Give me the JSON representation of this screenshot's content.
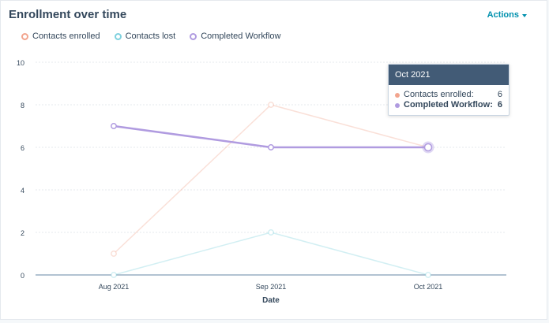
{
  "header": {
    "title": "Enrollment over time",
    "actions_label": "Actions"
  },
  "colors": {
    "enrolled": "#f2a58e",
    "lost": "#7fd1de",
    "workflow": "#b09be0",
    "tooltip_header": "#425b76",
    "accent": "#0091ae"
  },
  "legend": [
    {
      "label": "Contacts enrolled",
      "color": "#f2a58e"
    },
    {
      "label": "Contacts lost",
      "color": "#7fd1de"
    },
    {
      "label": "Completed Workflow",
      "color": "#b09be0"
    }
  ],
  "tooltip": {
    "title": "Oct 2021",
    "rows": [
      {
        "label": "Contacts enrolled:",
        "value": "6",
        "color": "#f2a58e",
        "bold": false
      },
      {
        "label": "Completed Workflow:",
        "value": "6",
        "color": "#b09be0",
        "bold": true
      }
    ]
  },
  "chart_data": {
    "type": "line",
    "categories": [
      "Aug 2021",
      "Sep 2021",
      "Oct 2021"
    ],
    "series": [
      {
        "name": "Contacts enrolled",
        "values": [
          1,
          8,
          6
        ],
        "color": "#f2a58e"
      },
      {
        "name": "Contacts lost",
        "values": [
          0,
          2,
          0
        ],
        "color": "#7fd1de"
      },
      {
        "name": "Completed Workflow",
        "values": [
          7,
          6,
          6
        ],
        "color": "#b09be0"
      }
    ],
    "title": "Enrollment over time",
    "xlabel": "Date",
    "ylabel": "",
    "ylim": [
      0,
      10
    ],
    "yticks": [
      0,
      2,
      4,
      6,
      8,
      10
    ],
    "grid": true,
    "legend_position": "top-left",
    "highlighted_category": "Oct 2021",
    "highlighted_series": "Completed Workflow"
  }
}
